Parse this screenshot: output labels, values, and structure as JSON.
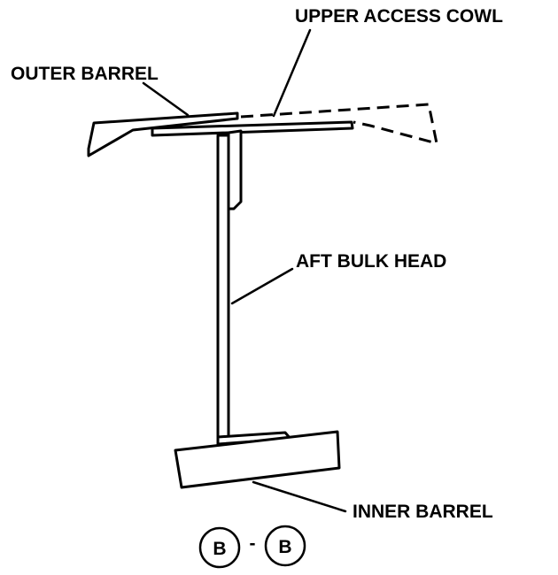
{
  "labels": {
    "upper_access_cowl": "UPPER ACCESS COWL",
    "outer_barrel": "OUTER BARREL",
    "aft_bulk_head": "AFT BULK HEAD",
    "inner_barrel": "INNER BARREL"
  },
  "section_marker": {
    "left_letter": "B",
    "separator": "-",
    "right_letter": "B"
  },
  "colors": {
    "line": "#000000",
    "background": "#ffffff"
  }
}
